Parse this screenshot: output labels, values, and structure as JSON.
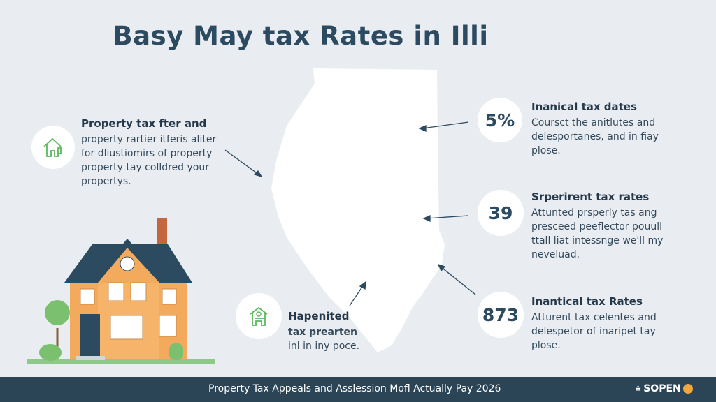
{
  "title": "Basy May tax Rates in Illi",
  "left_card": {
    "icon": "house-icon",
    "heading": "Property tax fter and",
    "lines": [
      "property rartier itferis aliter",
      "for dliustiomirs of property",
      "property tay colldred your",
      "propertys."
    ]
  },
  "bottom_card": {
    "icon": "house-icon",
    "heading": "Hapenited",
    "lines": [
      "tax prearten",
      "inl in iny poce."
    ]
  },
  "stats": [
    {
      "value": "5%",
      "heading": "Inanical tax dates",
      "lines": [
        "Coursct the anitlutes and",
        "delesportanes, and in fiay",
        "plose."
      ]
    },
    {
      "value": "39",
      "heading": "Srperirent tax rates",
      "lines": [
        "Attunted prsperly tas ang",
        "presceed peeflector pouull",
        "ttall liat intessnge we'll my",
        "neveluad."
      ]
    },
    {
      "value": "873",
      "heading": "Inantical tax Rates",
      "lines": [
        "Atturent tax celentes and",
        "delespetor of inaripet tay",
        "plose."
      ]
    }
  ],
  "footer": {
    "text": "Property Tax Appeals and Asslession Mofl Actually Pay 2026",
    "brand": "SOPEN"
  },
  "colors": {
    "background": "#e9edf1",
    "footer": "#2b4557",
    "icon_green": "#5cb85c",
    "house_orange": "#f4aa5c",
    "roof": "#2c4a60"
  }
}
